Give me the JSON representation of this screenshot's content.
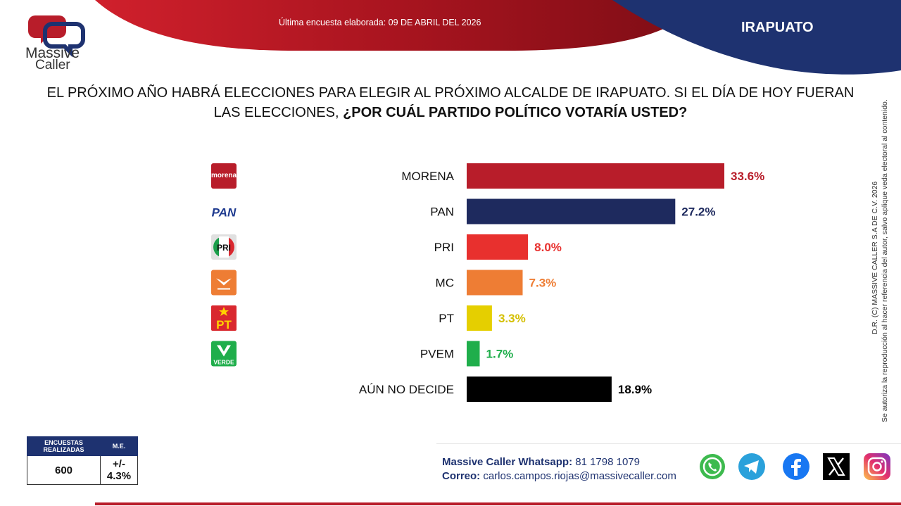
{
  "header": {
    "survey_date": "Última encuesta elaborada: 09 DE ABRIL DEL 2026",
    "city": "IRAPUATO",
    "colors": {
      "red": "#b81d2a",
      "navy": "#1e3270"
    }
  },
  "logo": {
    "word1": "Massive",
    "word2": "Caller"
  },
  "question": {
    "part1": "EL PRÓXIMO AÑO HABRÁ ELECCIONES PARA ELEGIR AL PRÓXIMO ALCALDE DE IRAPUATO. SI EL DÍA DE HOY FUERAN LAS ELECCIONES, ",
    "part2": "¿POR CUÁL PARTIDO POLÍTICO VOTARÍA USTED?"
  },
  "chart_data": {
    "type": "bar",
    "orientation": "horizontal",
    "categories": [
      "MORENA",
      "PAN",
      "PRI",
      "MC",
      "PT",
      "PVEM",
      "AÚN NO DECIDE"
    ],
    "values": [
      33.6,
      27.2,
      8.0,
      7.3,
      3.3,
      1.7,
      18.9
    ],
    "value_labels": [
      "33.6%",
      "27.2%",
      "8.0%",
      "7.3%",
      "3.3%",
      "1.7%",
      "18.9%"
    ],
    "colors": [
      "#b81d2a",
      "#1e2a5e",
      "#e8302e",
      "#ee7d34",
      "#e5cf00",
      "#1fae4b",
      "#000000"
    ],
    "label_colors": [
      "#b81d2a",
      "#1e2a5e",
      "#e8302e",
      "#ee7d34",
      "#d4bf00",
      "#1fae4b",
      "#000000"
    ],
    "icons": [
      "morena-logo-icon",
      "pan-logo-icon",
      "pri-logo-icon",
      "mc-logo-icon",
      "pt-logo-icon",
      "pvem-logo-icon",
      ""
    ],
    "icon_texts": {
      "morena": "morena",
      "pan": "PAN",
      "pri": "PRI",
      "pt": "PT",
      "pvem": "VERDE"
    },
    "xlim": [
      0,
      33.6
    ],
    "grid": false,
    "legend": "none"
  },
  "side_note": {
    "line1": "D.R. (C) MASSIVE CALLER S.A DE C.V. 2026",
    "line2": "Se autoriza la reproducción al hacer referencia del autor, salvo aplique veda electoral al contenido."
  },
  "stats_table": {
    "headers": [
      "ENCUESTAS REALIZADAS",
      "M.E."
    ],
    "values": [
      "600",
      "+/- 4.3%"
    ]
  },
  "contact": {
    "whatsapp_label": "Massive Caller Whatsapp:",
    "whatsapp_number": "81 1798 1079",
    "email_label": "Correo:",
    "email": "carlos.campos.riojas@massivecaller.com"
  },
  "social_icons": [
    "whatsapp-icon",
    "telegram-icon",
    "facebook-icon",
    "x-icon",
    "instagram-icon"
  ]
}
